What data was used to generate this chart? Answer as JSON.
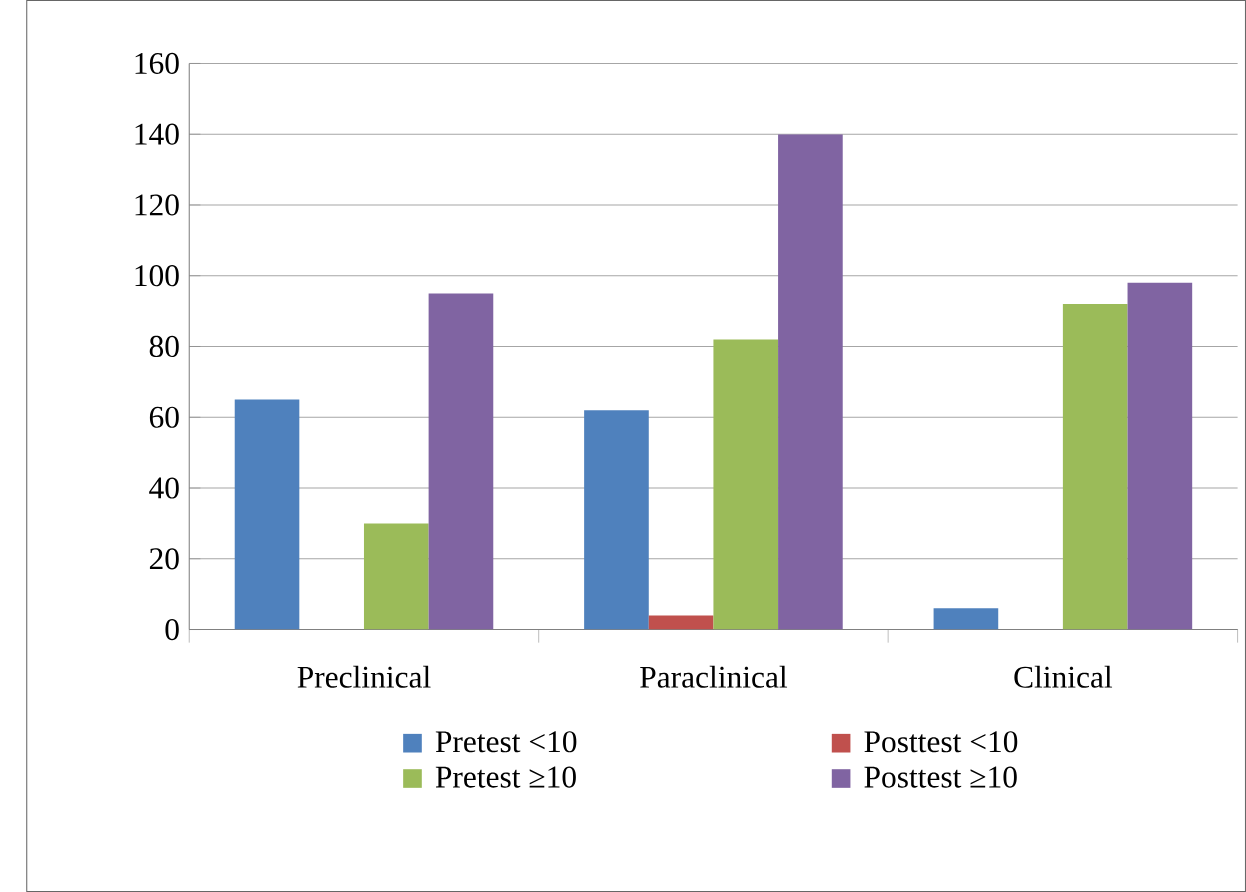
{
  "chart_data": {
    "type": "bar",
    "categories": [
      "Preclinical",
      "Paraclinical",
      "Clinical"
    ],
    "series": [
      {
        "name": "Pretest <10",
        "color": "#4f81bd",
        "values": [
          65,
          62,
          6
        ]
      },
      {
        "name": "Posttest <10",
        "color": "#c0504d",
        "values": [
          0,
          4,
          0
        ]
      },
      {
        "name": "Pretest ≥10",
        "color": "#9bbb59",
        "values": [
          30,
          82,
          92
        ]
      },
      {
        "name": "Posttest ≥10",
        "color": "#8064a2",
        "values": [
          95,
          140,
          98
        ]
      }
    ],
    "ylim": [
      0,
      160
    ],
    "yticks": [
      0,
      20,
      40,
      60,
      80,
      100,
      120,
      140,
      160
    ],
    "grid": "y",
    "legend": "bottom"
  }
}
